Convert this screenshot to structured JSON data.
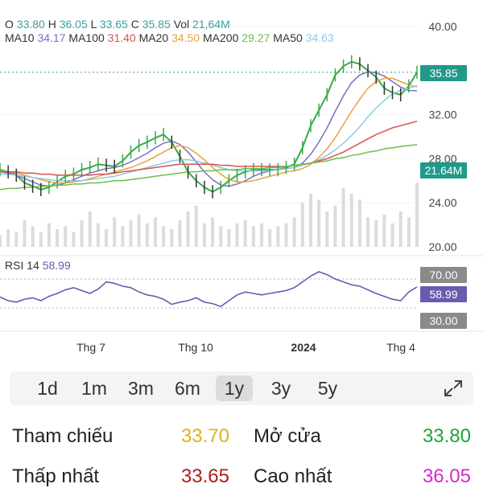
{
  "header": {
    "ohlc": [
      {
        "key": "O",
        "value": "33.80"
      },
      {
        "key": "H",
        "value": "36.05"
      },
      {
        "key": "L",
        "value": "33.65"
      },
      {
        "key": "C",
        "value": "35.85"
      },
      {
        "key": "Vol",
        "value": "21,64M"
      }
    ],
    "ma": [
      {
        "key": "MA10",
        "value": "34.17",
        "color": "#7b6fc4"
      },
      {
        "key": "MA100",
        "value": "31.40",
        "color": "#d9534f"
      },
      {
        "key": "MA20",
        "value": "34.50",
        "color": "#e8a33c"
      },
      {
        "key": "MA200",
        "value": "29.27",
        "color": "#6cc04a"
      },
      {
        "key": "MA50",
        "value": "34.63",
        "color": "#8fc9e6"
      }
    ],
    "value_color": "#3aa0a0"
  },
  "tags": {
    "last_price": "35.85",
    "volume": "21.64M",
    "rsi_upper": "70.00",
    "rsi_value": "58.99",
    "rsi_lower": "30.00"
  },
  "rsi": {
    "title": "RSI 14",
    "value": "58.99",
    "color": "#6a5ab0"
  },
  "ranges": {
    "items": [
      "1d",
      "1m",
      "3m",
      "6m",
      "1y",
      "3y",
      "5y"
    ],
    "selected": "1y"
  },
  "stats": [
    {
      "label": "Tham chiếu",
      "value": "33.70",
      "color": "#e0b020"
    },
    {
      "label": "Mở cửa",
      "value": "33.80",
      "color": "#1ea33a"
    },
    {
      "label": "Thấp nhất",
      "value": "33.65",
      "color": "#b01c1c"
    },
    {
      "label": "Cao nhất",
      "value": "36.05",
      "color": "#d629c9"
    }
  ],
  "chart_data": {
    "type": "line",
    "title": "",
    "price_axis": {
      "ticks": [
        "40.00",
        "32.00",
        "28.00",
        "24.00",
        "20.00"
      ],
      "ylim": [
        20,
        40
      ]
    },
    "rsi_axis": {
      "ylim": [
        0,
        100
      ],
      "levels": [
        70,
        30
      ]
    },
    "x_ticks": [
      "Thg 7",
      "Thg 10",
      "2024",
      "Thg 4"
    ],
    "series": [
      {
        "name": "Price",
        "color": "#3aaa4a",
        "values": [
          27.0,
          26.8,
          26.5,
          25.8,
          25.5,
          25.2,
          25.4,
          25.9,
          26.4,
          26.6,
          27.0,
          27.2,
          27.5,
          27.4,
          27.3,
          27.8,
          28.6,
          29.2,
          29.5,
          29.9,
          30.2,
          29.5,
          28.2,
          26.8,
          26.0,
          25.4,
          25.0,
          25.4,
          26.0,
          26.5,
          26.8,
          27.0,
          27.0,
          27.0,
          27.0,
          27.2,
          27.5,
          29.0,
          31.0,
          32.4,
          33.8,
          35.6,
          36.4,
          36.8,
          36.6,
          36.0,
          35.4,
          34.4,
          34.0,
          33.8,
          34.6,
          35.85
        ]
      },
      {
        "name": "MA10",
        "color": "#7b6fc4",
        "values": [
          26.8,
          26.7,
          26.5,
          26.2,
          25.9,
          25.6,
          25.5,
          25.6,
          25.8,
          26.1,
          26.4,
          26.7,
          26.9,
          27.1,
          27.2,
          27.4,
          27.7,
          28.1,
          28.5,
          29.0,
          29.4,
          29.6,
          29.3,
          28.6,
          27.7,
          26.8,
          26.1,
          25.6,
          25.5,
          25.7,
          26.0,
          26.4,
          26.7,
          26.9,
          27.0,
          27.1,
          27.2,
          27.6,
          28.4,
          29.5,
          30.8,
          32.3,
          33.7,
          34.9,
          35.6,
          35.9,
          35.8,
          35.5,
          35.0,
          34.5,
          34.2,
          34.17
        ]
      },
      {
        "name": "MA20",
        "color": "#e8a33c",
        "values": [
          26.9,
          26.8,
          26.7,
          26.5,
          26.3,
          26.1,
          25.9,
          25.8,
          25.8,
          25.9,
          26.0,
          26.2,
          26.4,
          26.6,
          26.8,
          27.0,
          27.2,
          27.5,
          27.8,
          28.2,
          28.6,
          29.0,
          29.2,
          29.0,
          28.5,
          27.9,
          27.2,
          26.6,
          26.1,
          25.9,
          25.9,
          26.0,
          26.2,
          26.4,
          26.6,
          26.8,
          26.9,
          27.1,
          27.5,
          28.1,
          28.9,
          29.9,
          31.1,
          32.3,
          33.4,
          34.4,
          35.0,
          35.3,
          35.3,
          35.0,
          34.7,
          34.5
        ]
      },
      {
        "name": "MA50",
        "color": "#8fc9e6",
        "values": [
          26.6,
          26.6,
          26.5,
          26.4,
          26.3,
          26.2,
          26.1,
          26.0,
          26.0,
          26.0,
          26.0,
          26.1,
          26.2,
          26.3,
          26.4,
          26.6,
          26.8,
          27.0,
          27.2,
          27.4,
          27.6,
          27.8,
          27.9,
          27.9,
          27.8,
          27.6,
          27.4,
          27.2,
          27.0,
          26.9,
          26.9,
          26.9,
          26.9,
          26.9,
          27.0,
          27.1,
          27.2,
          27.4,
          27.6,
          27.9,
          28.3,
          28.8,
          29.4,
          30.1,
          30.9,
          31.8,
          32.6,
          33.3,
          33.9,
          34.2,
          34.4,
          34.63
        ]
      },
      {
        "name": "MA100",
        "color": "#d9534f",
        "values": [
          26.8,
          26.8,
          26.8,
          26.7,
          26.7,
          26.6,
          26.6,
          26.5,
          26.5,
          26.5,
          26.5,
          26.5,
          26.6,
          26.6,
          26.7,
          26.8,
          26.9,
          27.0,
          27.1,
          27.2,
          27.3,
          27.4,
          27.5,
          27.5,
          27.5,
          27.5,
          27.5,
          27.4,
          27.4,
          27.3,
          27.3,
          27.3,
          27.3,
          27.3,
          27.3,
          27.3,
          27.4,
          27.5,
          27.6,
          27.8,
          28.0,
          28.3,
          28.6,
          29.0,
          29.4,
          29.8,
          30.2,
          30.5,
          30.8,
          31.0,
          31.2,
          31.4
        ]
      },
      {
        "name": "MA200",
        "color": "#6cc04a",
        "values": [
          25.2,
          25.3,
          25.3,
          25.4,
          25.4,
          25.5,
          25.5,
          25.6,
          25.6,
          25.7,
          25.7,
          25.8,
          25.8,
          25.9,
          26.0,
          26.0,
          26.1,
          26.2,
          26.3,
          26.4,
          26.5,
          26.6,
          26.7,
          26.8,
          26.8,
          26.9,
          26.9,
          27.0,
          27.0,
          27.0,
          27.1,
          27.1,
          27.1,
          27.2,
          27.2,
          27.3,
          27.4,
          27.5,
          27.6,
          27.7,
          27.8,
          28.0,
          28.1,
          28.3,
          28.4,
          28.6,
          28.7,
          28.9,
          29.0,
          29.1,
          29.2,
          29.27
        ]
      },
      {
        "name": "RSI 14",
        "color": "#6a5ab0",
        "values": [
          45,
          40,
          38,
          42,
          44,
          40,
          46,
          50,
          55,
          58,
          54,
          50,
          56,
          66,
          64,
          60,
          58,
          52,
          48,
          46,
          42,
          35,
          38,
          40,
          44,
          38,
          36,
          32,
          40,
          48,
          52,
          50,
          48,
          50,
          52,
          54,
          58,
          66,
          74,
          80,
          76,
          70,
          66,
          62,
          60,
          55,
          50,
          46,
          42,
          40,
          52,
          58.99
        ]
      },
      {
        "name": "Vol",
        "color": "#dcdcdc",
        "values": [
          4,
          6,
          5,
          9,
          7,
          5,
          8,
          6,
          7,
          5,
          9,
          12,
          8,
          6,
          10,
          7,
          9,
          11,
          8,
          10,
          7,
          6,
          9,
          12,
          14,
          8,
          10,
          7,
          6,
          8,
          9,
          7,
          8,
          6,
          7,
          8,
          10,
          15,
          18,
          16,
          12,
          14,
          20,
          18,
          16,
          10,
          9,
          11,
          8,
          12,
          10,
          21.64
        ]
      }
    ]
  }
}
